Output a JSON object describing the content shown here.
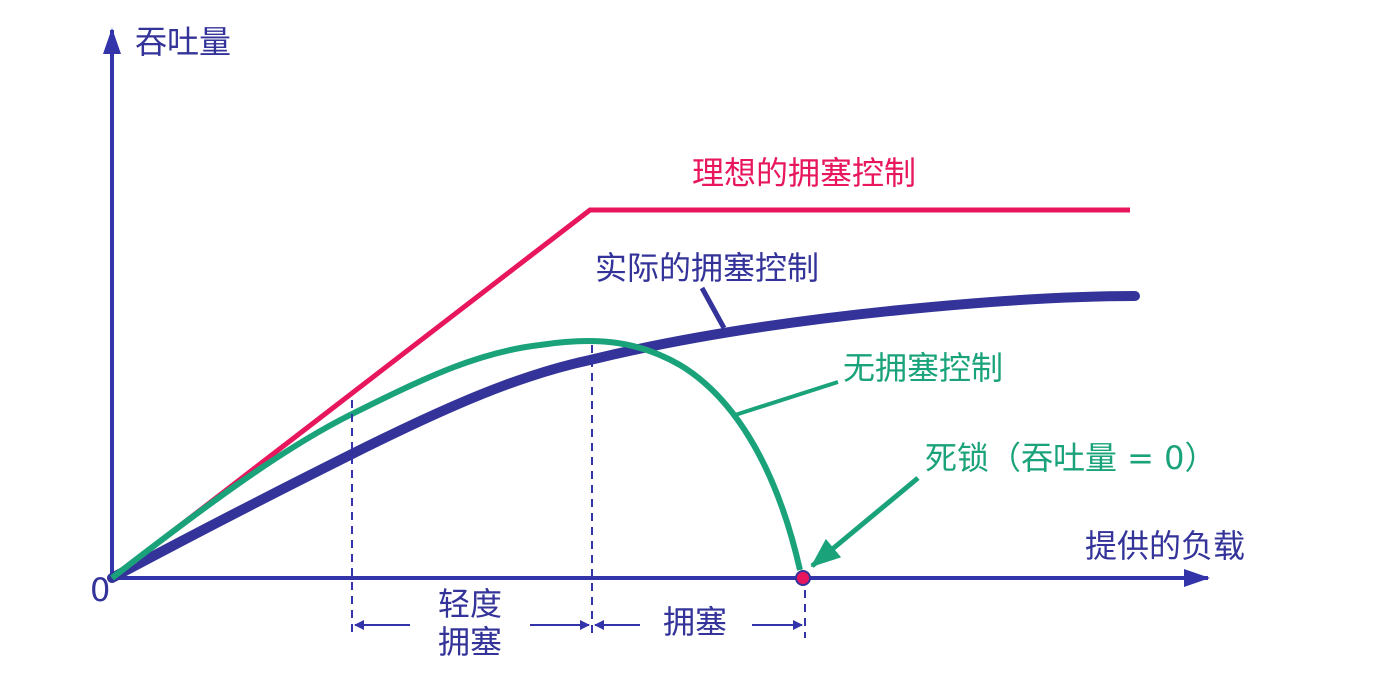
{
  "axes": {
    "y_label": "吞吐量",
    "x_label": "提供的负载",
    "origin": "0"
  },
  "curves": [
    {
      "label": "理想的拥塞控制"
    },
    {
      "label": "实际的拥塞控制"
    },
    {
      "label": "无拥塞控制"
    }
  ],
  "deadlock_label": "死锁（吞吐量 = 0）",
  "regions": [
    {
      "lines": [
        "轻度",
        "拥塞"
      ]
    },
    {
      "lines": [
        "拥塞"
      ]
    }
  ]
}
